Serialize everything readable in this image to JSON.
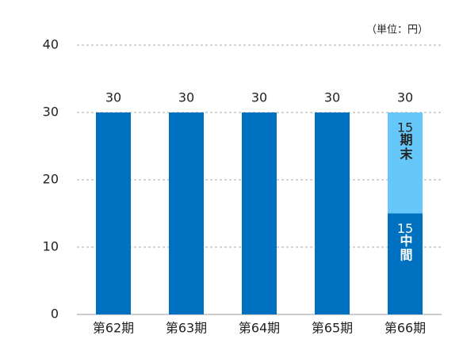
{
  "chart_data": {
    "type": "stacked_bar",
    "unit_note": "（単位：円）",
    "categories": [
      "第62期",
      "第63期",
      "第64期",
      "第65期",
      "第66期"
    ],
    "series": [
      {
        "name": "中間",
        "color": "#0070c0",
        "values": [
          30,
          30,
          30,
          30,
          15
        ]
      },
      {
        "name": "期末",
        "color": "#66c8f8",
        "values": [
          null,
          null,
          null,
          null,
          15
        ]
      }
    ],
    "totals": [
      30,
      30,
      30,
      30,
      30
    ],
    "ylim": [
      0,
      40
    ],
    "yticks": [
      0,
      10,
      20,
      30,
      40
    ],
    "grid": true
  }
}
